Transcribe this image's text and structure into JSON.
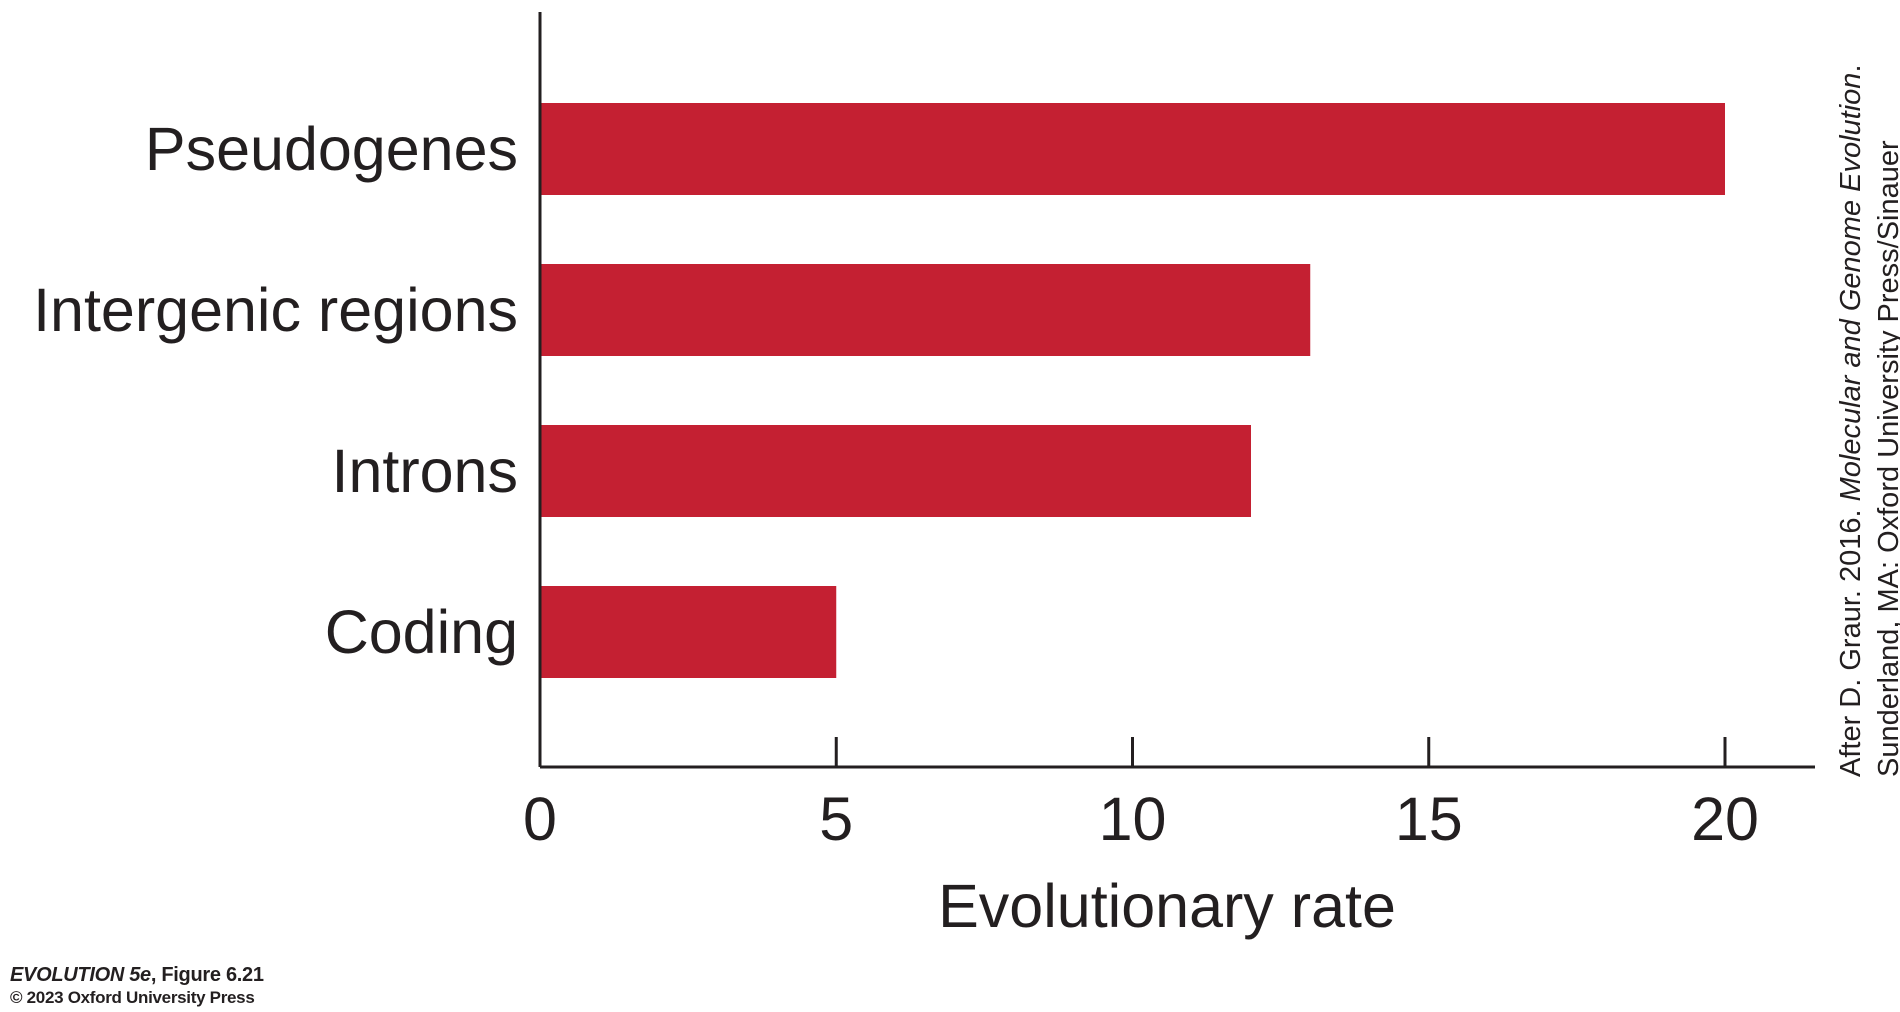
{
  "chart_data": {
    "type": "bar",
    "orientation": "horizontal",
    "categories": [
      "Pseudogenes",
      "Intergenic regions",
      "Introns",
      "Coding"
    ],
    "values": [
      20,
      13,
      12,
      5
    ],
    "xlabel": "Evolutionary rate",
    "ylabel": "",
    "xlim": [
      0,
      21.5
    ],
    "xticks": [
      0,
      5,
      10,
      15,
      20
    ],
    "xtick_labels": [
      "0",
      "5",
      "10",
      "15",
      "20"
    ],
    "bar_color": "#c42032",
    "axis_color": "#231f20",
    "grid": false,
    "legend": "none"
  },
  "credit": {
    "line1_prefix": "After D. Graur. 2016. ",
    "line1_title": "Molecular and Genome Evolution",
    "line1_suffix": ".",
    "line2": "Sunderland, MA: Oxford University Press/Sinauer"
  },
  "figure_caption": {
    "book": "EVOLUTION 5e",
    "figure": ", Figure 6.21",
    "copyright": "© 2023 Oxford University Press"
  }
}
